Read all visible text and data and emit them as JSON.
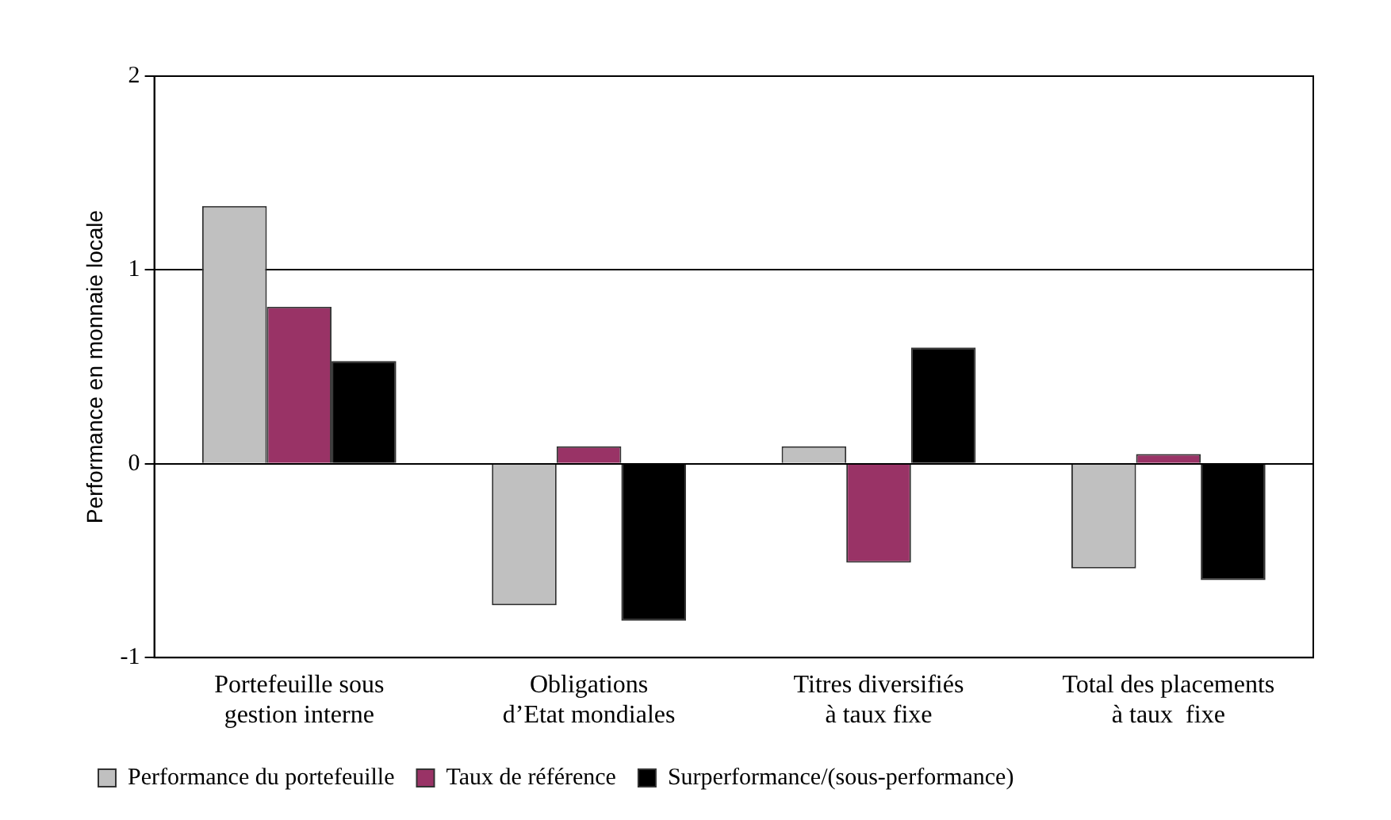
{
  "chart_data": {
    "type": "bar",
    "ylabel": "Performance en monnaie locale",
    "categories": [
      "Portefeuille sous gestion interne",
      "Obligations d’Etat mondiales",
      "Titres diversifiés à taux fixe",
      "Total des placements à taux  fixe"
    ],
    "series": [
      {
        "name": "Performance du portefeuille",
        "color": "#c0c0c0",
        "values": [
          1.33,
          -0.73,
          0.09,
          -0.54
        ]
      },
      {
        "name": "Taux de référence",
        "color": "#993366",
        "values": [
          0.81,
          0.09,
          -0.51,
          0.05
        ]
      },
      {
        "name": "Surperformance/(sous-performance)",
        "color": "#000000",
        "values": [
          0.53,
          -0.81,
          0.6,
          -0.6
        ]
      }
    ],
    "ylim": [
      -1,
      2
    ],
    "yticks": [
      -1,
      0,
      1,
      2
    ],
    "grid": "y",
    "legend": "bottom"
  }
}
